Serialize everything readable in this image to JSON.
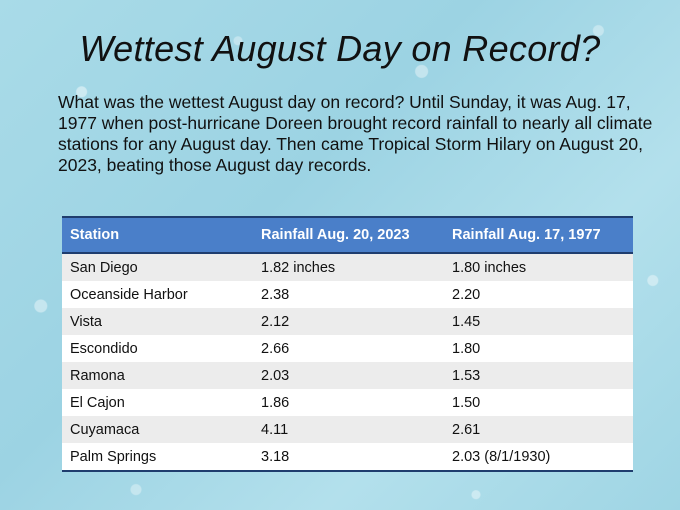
{
  "title": "Wettest August Day on Record?",
  "intro": "What was the wettest August day on record? Until Sunday, it was Aug. 17, 1977 when post-hurricane Doreen brought record rainfall to nearly all climate stations for any August day. Then came Tropical Storm Hilary on August 20, 2023, beating those August day records.",
  "table": {
    "headers": [
      "Station",
      "Rainfall Aug. 20, 2023",
      "Rainfall Aug. 17, 1977"
    ],
    "rows": [
      [
        "San Diego",
        "1.82 inches",
        "1.80 inches"
      ],
      [
        "Oceanside Harbor",
        "2.38",
        "2.20"
      ],
      [
        "Vista",
        "2.12",
        "1.45"
      ],
      [
        "Escondido",
        "2.66",
        "1.80"
      ],
      [
        "Ramona",
        "2.03",
        "1.53"
      ],
      [
        "El Cajon",
        "1.86",
        "1.50"
      ],
      [
        "Cuyamaca",
        "4.11",
        "2.61"
      ],
      [
        "Palm Springs",
        "3.18",
        "2.03 (8/1/1930)"
      ]
    ]
  },
  "colors": {
    "header_bg": "#4a7fc9",
    "header_border": "#1f3d6e",
    "row_alt": "#ececec",
    "background": "#a9dbe8"
  }
}
